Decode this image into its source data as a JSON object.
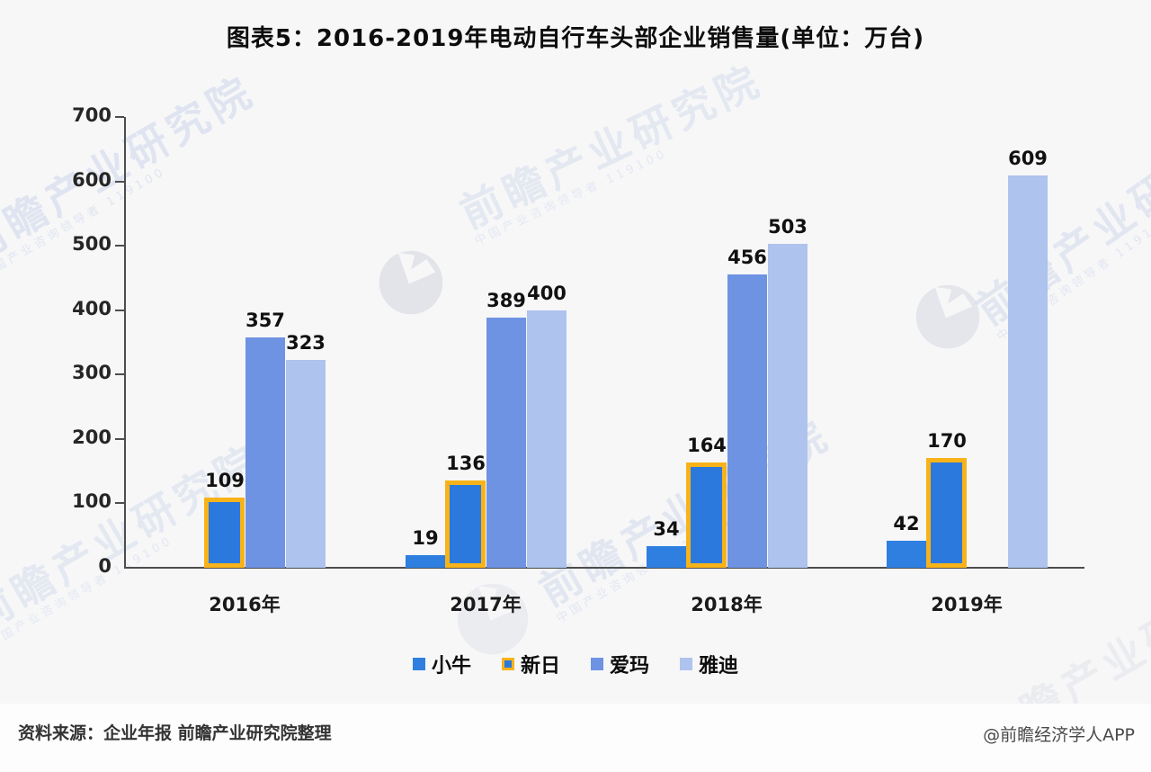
{
  "title": "图表5：2016-2019年电动自行车头部企业销售量(单位：万台)",
  "chart_data": {
    "type": "bar",
    "title": "图表5：2016-2019年电动自行车头部企业销售量(单位：万台)",
    "unit": "万台",
    "categories": [
      "2016年",
      "2017年",
      "2018年",
      "2019年"
    ],
    "series": [
      {
        "name": "小牛",
        "color": "#2e7fe0",
        "values": [
          null,
          19,
          34,
          42
        ]
      },
      {
        "name": "新日",
        "color": "#2b79dd",
        "border_color": "#f7b319",
        "values": [
          109,
          136,
          164,
          170
        ]
      },
      {
        "name": "爱玛",
        "color": "#6e93e2",
        "values": [
          357,
          389,
          456,
          null
        ]
      },
      {
        "name": "雅迪",
        "color": "#aec3ed",
        "values": [
          323,
          400,
          503,
          609
        ]
      }
    ],
    "ylim": [
      0,
      700
    ],
    "yticks": [
      0,
      100,
      200,
      300,
      400,
      500,
      600,
      700
    ],
    "xlabel": "",
    "ylabel": "",
    "grid": false,
    "legend_position": "bottom",
    "value_labels": true,
    "axis_color": "#4d4d4d"
  },
  "footer": {
    "source": "资料来源：企业年报 前瞻产业研究院整理",
    "credit": "@前瞻经济学人APP"
  },
  "watermark": {
    "text": "前瞻产业研究院",
    "subtext": "中国产业咨询领导者 119100"
  }
}
